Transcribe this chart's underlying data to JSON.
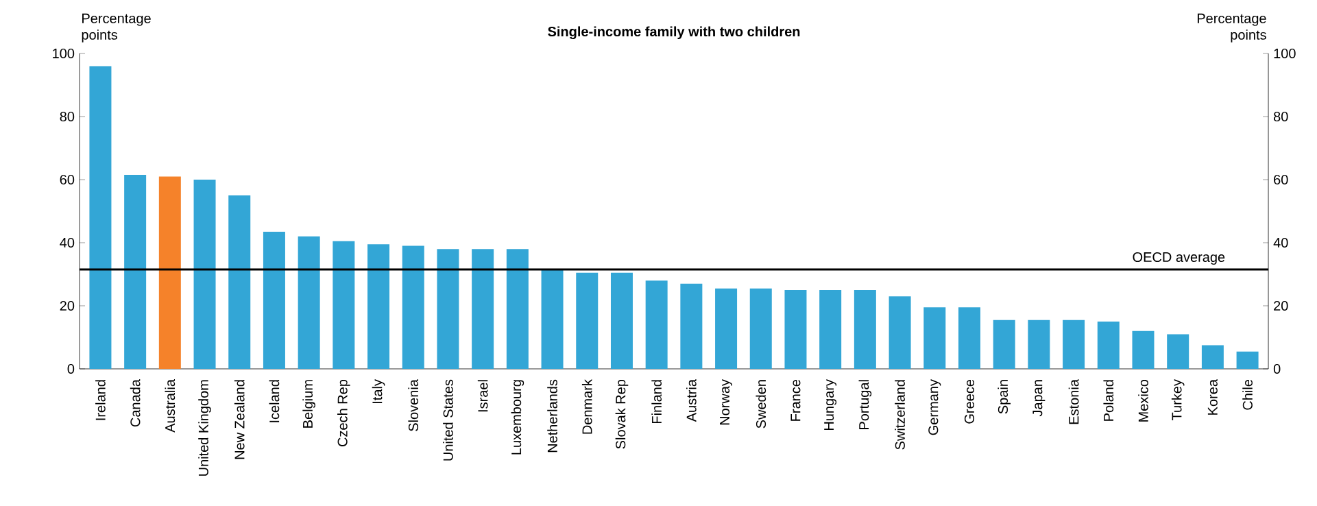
{
  "chart_data": {
    "type": "bar",
    "title": "Single-income family with two children",
    "ylabel": "Percentage points",
    "y2label": "Percentage points",
    "categories": [
      "Ireland",
      "Canada",
      "Australia",
      "United Kingdom",
      "New Zealand",
      "Iceland",
      "Belgium",
      "Czech Rep",
      "Italy",
      "Slovenia",
      "United States",
      "Israel",
      "Luxembourg",
      "Netherlands",
      "Denmark",
      "Slovak Rep",
      "Finland",
      "Austria",
      "Norway",
      "Sweden",
      "France",
      "Hungary",
      "Portugal",
      "Switzerland",
      "Germany",
      "Greece",
      "Spain",
      "Japan",
      "Estonia",
      "Poland",
      "Mexico",
      "Turkey",
      "Korea",
      "Chile"
    ],
    "values": [
      96,
      61.5,
      61,
      60,
      55,
      43.5,
      42,
      40.5,
      39.5,
      39,
      38,
      38,
      38,
      31.5,
      30.5,
      30.5,
      28,
      27,
      25.5,
      25.5,
      25,
      25,
      25,
      23,
      19.5,
      19.5,
      15.5,
      15.5,
      15.5,
      15,
      12,
      11,
      7.5,
      5.5
    ],
    "colors": [
      "#33a6d6",
      "#33a6d6",
      "#f5822a",
      "#33a6d6",
      "#33a6d6",
      "#33a6d6",
      "#33a6d6",
      "#33a6d6",
      "#33a6d6",
      "#33a6d6",
      "#33a6d6",
      "#33a6d6",
      "#33a6d6",
      "#33a6d6",
      "#33a6d6",
      "#33a6d6",
      "#33a6d6",
      "#33a6d6",
      "#33a6d6",
      "#33a6d6",
      "#33a6d6",
      "#33a6d6",
      "#33a6d6",
      "#33a6d6",
      "#33a6d6",
      "#33a6d6",
      "#33a6d6",
      "#33a6d6",
      "#33a6d6",
      "#33a6d6",
      "#33a6d6",
      "#33a6d6",
      "#33a6d6",
      "#33a6d6"
    ],
    "ylim": [
      0,
      100
    ],
    "yticks": [
      0,
      20,
      40,
      60,
      80,
      100
    ],
    "y2lim": [
      0,
      100
    ],
    "y2ticks": [
      0,
      20,
      40,
      60,
      80,
      100
    ],
    "ref_lines": [
      {
        "axis": "y",
        "value": 31.5,
        "label": "OECD average",
        "color": "#000000"
      }
    ],
    "grid": false
  }
}
